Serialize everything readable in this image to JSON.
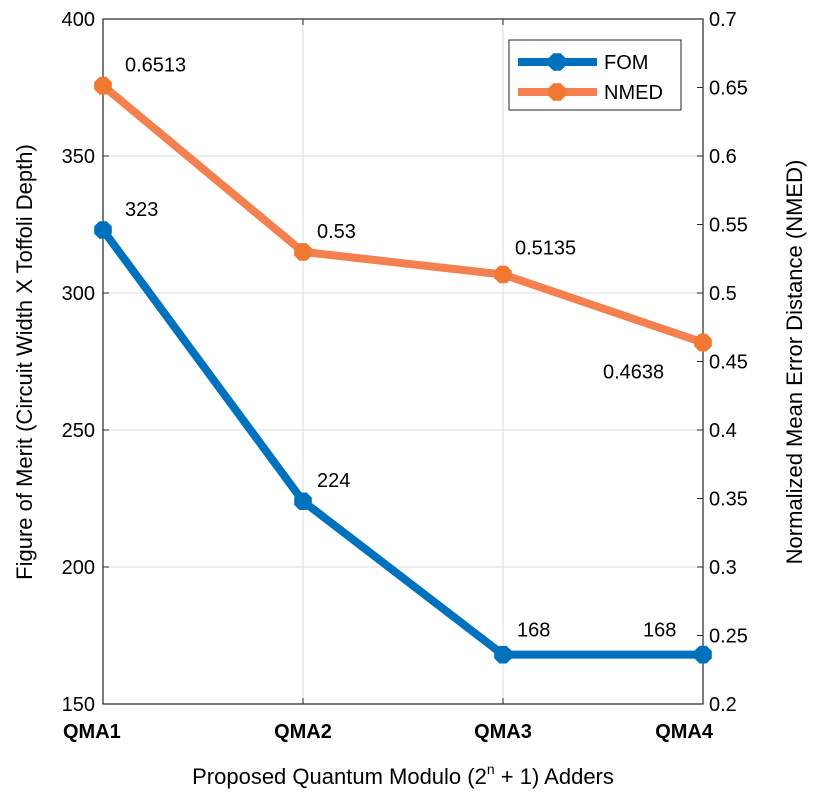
{
  "chart_data": {
    "type": "line",
    "categories": [
      "QMA1",
      "QMA2",
      "QMA3",
      "QMA4"
    ],
    "xlabel": "Proposed Quantum Modulo (2^n + 1) Adders",
    "xlabel_parts": {
      "base": "Proposed Quantum Modulo (2",
      "sup": "n",
      "rest": " + 1) Adders"
    },
    "ylabel_left": "Figure of Merit (Circuit Width X Toffoli Depth)",
    "ylabel_right": "Normalized Mean Error Distance (NMED)",
    "ylim_left": [
      150,
      400
    ],
    "yticks_left": [
      150,
      200,
      250,
      300,
      350,
      400
    ],
    "ylim_right": [
      0.2,
      0.7
    ],
    "yticks_right": [
      "0.2",
      "0.25",
      "0.3",
      "0.35",
      "0.4",
      "0.45",
      "0.5",
      "0.55",
      "0.6",
      "0.65",
      "0.7"
    ],
    "grid": true,
    "legend_position": "top-right",
    "series": [
      {
        "name": "FOM",
        "axis": "left",
        "color": "#0072BD",
        "values": [
          323,
          224,
          168,
          168
        ],
        "labels": [
          "323",
          "224",
          "168",
          "168"
        ]
      },
      {
        "name": "NMED",
        "axis": "right",
        "color": "#F4804F",
        "marker_color": "#F07830",
        "values": [
          0.6513,
          0.53,
          0.5135,
          0.4638
        ],
        "labels": [
          "0.6513",
          "0.53",
          "0.5135",
          "0.4638"
        ]
      }
    ]
  }
}
